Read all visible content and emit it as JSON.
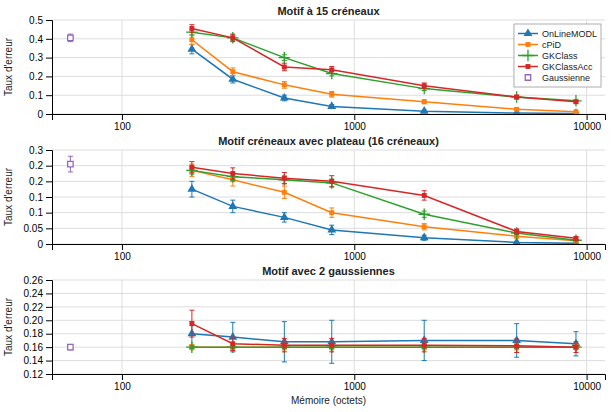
{
  "chart_data": [
    {
      "type": "line",
      "title": "Motif à 15 créneaux",
      "ylabel": "Taux d'erreur",
      "log": "x",
      "grid": true,
      "legend": "upper right",
      "x": [
        200,
        300,
        500,
        800,
        2000,
        5000,
        9000
      ],
      "xlim": [
        50,
        12000
      ],
      "xticks": [
        100,
        1000,
        10000
      ],
      "ylim": [
        0,
        0.5
      ],
      "yticks": [
        0,
        0.1,
        0.2,
        0.3,
        0.4,
        0.5
      ],
      "series": [
        {
          "name": "OnLineMODL",
          "marker": "triangle",
          "values": [
            0.345,
            0.185,
            0.085,
            0.04,
            0.015,
            0.005,
            0.003
          ],
          "errors": [
            0.025,
            0.02,
            0.015,
            0.01,
            0.005,
            0.002,
            0.001
          ]
        },
        {
          "name": "cPiD",
          "marker": "square",
          "values": [
            0.395,
            0.225,
            0.155,
            0.105,
            0.065,
            0.025,
            0.012
          ],
          "errors": [
            0.025,
            0.02,
            0.018,
            0.015,
            0.01,
            0.005,
            0.003
          ]
        },
        {
          "name": "GKClass",
          "marker": "plus",
          "values": [
            0.435,
            0.405,
            0.3,
            0.215,
            0.135,
            0.09,
            0.07
          ],
          "errors": [
            0.015,
            0.015,
            0.015,
            0.012,
            0.01,
            0.007,
            0.005
          ]
        },
        {
          "name": "GKClassAcc",
          "marker": "square",
          "values": [
            0.455,
            0.405,
            0.25,
            0.235,
            0.15,
            0.09,
            0.065
          ],
          "errors": [
            0.02,
            0.02,
            0.02,
            0.018,
            0.015,
            0.01,
            0.007
          ]
        },
        {
          "name": "Gaussienne",
          "type": "scatter",
          "marker": "square-open",
          "x": [
            60
          ],
          "values": [
            0.405
          ],
          "errors": [
            0.02
          ]
        }
      ]
    },
    {
      "type": "line",
      "title": "Motif créneaux avec plateau (16 créneaux)",
      "ylabel": "Taux d'erreur",
      "log": "x",
      "grid": true,
      "x": [
        200,
        300,
        500,
        800,
        2000,
        5000,
        9000
      ],
      "xlim": [
        50,
        12000
      ],
      "xticks": [
        100,
        1000,
        10000
      ],
      "ylim": [
        0,
        0.3
      ],
      "yticks": [
        0,
        0.05,
        0.1,
        {
          "value": 0.15,
          "label": "0.1"
        },
        0.2,
        {
          "value": 0.25,
          "label": "0.2"
        },
        0.3
      ],
      "series": [
        {
          "marker": "triangle",
          "values": [
            0.175,
            0.12,
            0.085,
            0.045,
            0.02,
            0.005,
            0.002
          ],
          "errors": [
            0.025,
            0.02,
            0.015,
            0.015,
            0.008,
            0.003,
            0.001
          ]
        },
        {
          "marker": "square",
          "values": [
            0.235,
            0.205,
            0.165,
            0.1,
            0.055,
            0.025,
            0.01
          ],
          "errors": [
            0.02,
            0.02,
            0.02,
            0.015,
            0.01,
            0.006,
            0.003
          ]
        },
        {
          "marker": "plus",
          "values": [
            0.235,
            0.215,
            0.205,
            0.195,
            0.095,
            0.035,
            0.012
          ],
          "errors": [
            0.012,
            0.012,
            0.012,
            0.012,
            0.01,
            0.005,
            0.003
          ]
        },
        {
          "marker": "square",
          "values": [
            0.245,
            0.225,
            0.21,
            0.2,
            0.155,
            0.04,
            0.018
          ],
          "errors": [
            0.018,
            0.018,
            0.018,
            0.018,
            0.015,
            0.008,
            0.005
          ]
        },
        {
          "type": "scatter",
          "marker": "square-open",
          "x": [
            60
          ],
          "values": [
            0.255
          ],
          "errors": [
            0.025
          ]
        }
      ]
    },
    {
      "type": "line",
      "title": "Motif avec 2 gaussiennes",
      "ylabel": "Taux d'erreur",
      "xlabel": "Mémoire (octets)",
      "log": "x",
      "grid": true,
      "x": [
        200,
        300,
        500,
        800,
        2000,
        5000,
        9000
      ],
      "xlim": [
        50,
        12000
      ],
      "xticks": [
        100,
        1000,
        10000
      ],
      "ylim": [
        0.12,
        0.26
      ],
      "yticks": [
        0.12,
        0.14,
        0.16,
        0.18,
        {
          "value": 0.2,
          "label": "0.20"
        },
        0.22,
        0.24,
        0.26
      ],
      "series": [
        {
          "marker": "triangle",
          "values": [
            0.18,
            0.175,
            0.168,
            0.168,
            0.17,
            0.17,
            0.165
          ],
          "errors": [
            0.018,
            0.022,
            0.03,
            0.032,
            0.03,
            0.025,
            0.018
          ]
        },
        {
          "marker": "square",
          "values": [
            0.16,
            0.16,
            0.16,
            0.16,
            0.16,
            0.16,
            0.16
          ],
          "errors": [
            0.004,
            0.004,
            0.004,
            0.004,
            0.004,
            0.004,
            0.004
          ]
        },
        {
          "marker": "plus",
          "values": [
            0.16,
            0.16,
            0.16,
            0.16,
            0.16,
            0.16,
            0.16
          ],
          "errors": [
            0.002,
            0.002,
            0.002,
            0.002,
            0.002,
            0.002,
            0.002
          ]
        },
        {
          "marker": "square",
          "values": [
            0.195,
            0.165,
            0.163,
            0.163,
            0.163,
            0.162,
            0.16
          ],
          "errors": [
            0.02,
            0.01,
            0.01,
            0.01,
            0.01,
            0.01,
            0.008
          ]
        },
        {
          "type": "scatter",
          "marker": "square-open",
          "x": [
            60
          ],
          "values": [
            0.16
          ],
          "errors": [
            0.004
          ]
        }
      ]
    }
  ]
}
